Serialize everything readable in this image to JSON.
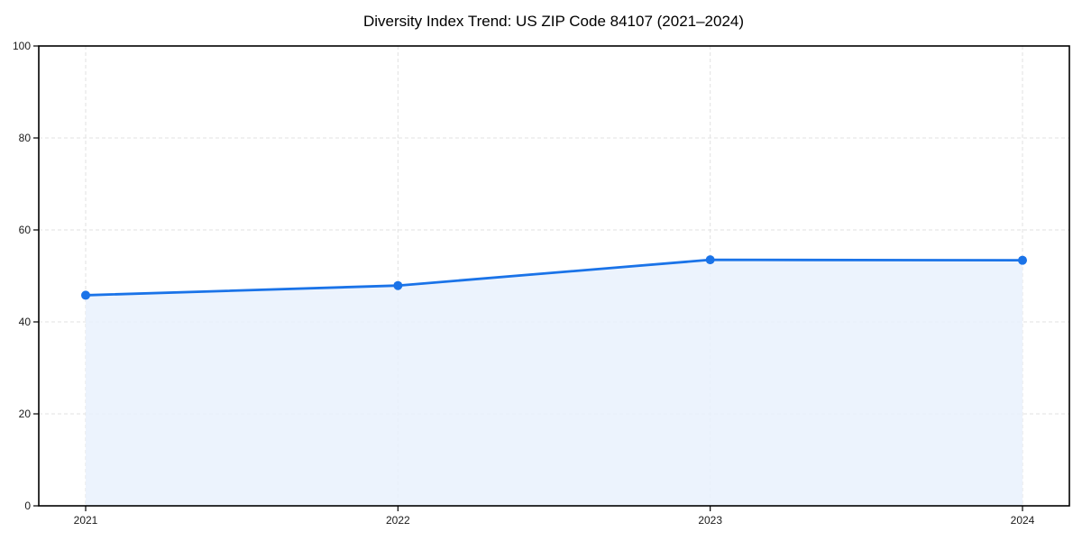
{
  "chart_data": {
    "type": "area",
    "title": "Diversity Index Trend: US ZIP Code 84107 (2021–2024)",
    "categories": [
      "2021",
      "2022",
      "2023",
      "2024"
    ],
    "values": [
      45.8,
      47.9,
      53.5,
      53.4
    ],
    "xlabel": "",
    "ylabel": "",
    "ylim": [
      0,
      100
    ],
    "yticks": [
      0,
      20,
      40,
      60,
      80,
      100
    ],
    "grid": true,
    "legend": "none",
    "colors": {
      "line": "#1a73e8",
      "marker": "#1a73e8",
      "fill": "#e9f1fd",
      "grid": "#e2e2e2",
      "axis": "#000000",
      "tick_label": "#1a1a1a",
      "background": "#ffffff"
    }
  }
}
